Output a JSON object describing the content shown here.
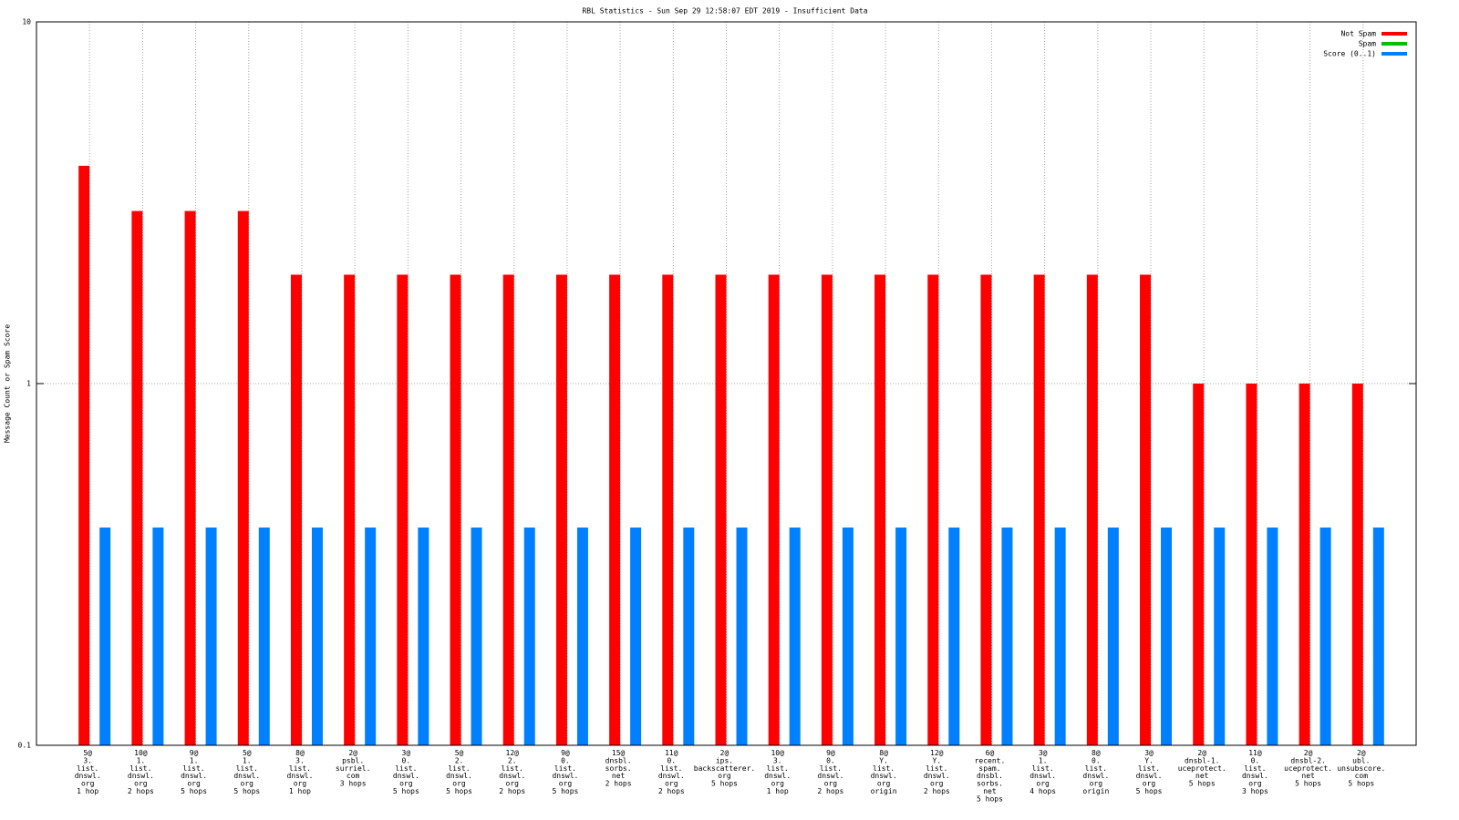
{
  "chart_data": {
    "type": "bar",
    "title": "RBL Statistics - Sun Sep 29 12:58:07 EDT 2019 - Insufficient Data",
    "y_label": "Message Count or Spam Score",
    "log_y": true,
    "grid": true,
    "legend": "top-right",
    "ylim": [
      0.1,
      10
    ],
    "yticks": [
      0.1,
      1,
      10
    ],
    "categories": [
      [
        "5@",
        "3.",
        "list.",
        "dnswl.",
        "org",
        "1 hop"
      ],
      [
        "10@",
        "1.",
        "list.",
        "dnswl.",
        "org",
        "2 hops"
      ],
      [
        "9@",
        "1.",
        "list.",
        "dnswl.",
        "org",
        "5 hops"
      ],
      [
        "5@",
        "1.",
        "list.",
        "dnswl.",
        "org",
        "5 hops"
      ],
      [
        "8@",
        "3.",
        "list.",
        "dnswl.",
        "org",
        "1 hop"
      ],
      [
        "2@",
        "psbl.",
        "surriel.",
        "com",
        "3 hops"
      ],
      [
        "3@",
        "0.",
        "list.",
        "dnswl.",
        "org",
        "5 hops"
      ],
      [
        "5@",
        "2.",
        "list.",
        "dnswl.",
        "org",
        "5 hops"
      ],
      [
        "12@",
        "2.",
        "list.",
        "dnswl.",
        "org",
        "2 hops"
      ],
      [
        "9@",
        "0.",
        "list.",
        "dnswl.",
        "org",
        "5 hops"
      ],
      [
        "15@",
        "dnsbl.",
        "sorbs.",
        "net",
        "2 hops"
      ],
      [
        "11@",
        "0.",
        "list.",
        "dnswl.",
        "org",
        "2 hops"
      ],
      [
        "2@",
        "ips.",
        "backscatterer.",
        "org",
        "5 hops"
      ],
      [
        "10@",
        "3.",
        "list.",
        "dnswl.",
        "org",
        "1 hop"
      ],
      [
        "9@",
        "0.",
        "list.",
        "dnswl.",
        "org",
        "2 hops"
      ],
      [
        "8@",
        "Y.",
        "list.",
        "dnswl.",
        "org",
        "origin"
      ],
      [
        "12@",
        "Y.",
        "list.",
        "dnswl.",
        "org",
        "2 hops"
      ],
      [
        "6@",
        "recent.",
        "spam.",
        "dnsbl.",
        "sorbs.",
        "net",
        "5 hops"
      ],
      [
        "3@",
        "1.",
        "list.",
        "dnswl.",
        "org",
        "4 hops"
      ],
      [
        "8@",
        "0.",
        "list.",
        "dnswl.",
        "org",
        "origin"
      ],
      [
        "3@",
        "Y.",
        "list.",
        "dnswl.",
        "org",
        "5 hops"
      ],
      [
        "2@",
        "dnsbl-1.",
        "uceprotect.",
        "net",
        "5 hops"
      ],
      [
        "11@",
        "0.",
        "list.",
        "dnswl.",
        "org",
        "3 hops"
      ],
      [
        "2@",
        "dnsbl-2.",
        "uceprotect.",
        "net",
        "5 hops"
      ],
      [
        "2@",
        "ubl.",
        "unsubscore.",
        "com",
        "5 hops"
      ]
    ],
    "series": [
      {
        "name": "Not Spam",
        "color": "#ff0000",
        "values": [
          4,
          3,
          3,
          3,
          2,
          2,
          2,
          2,
          2,
          2,
          2,
          2,
          2,
          2,
          2,
          2,
          2,
          2,
          2,
          2,
          2,
          1,
          1,
          1,
          1
        ]
      },
      {
        "name": "Spam",
        "color": "#00c000",
        "values": [
          0,
          0,
          0,
          0,
          0,
          0,
          0,
          0,
          0,
          0,
          0,
          0,
          0,
          0,
          0,
          0,
          0,
          0,
          0,
          0,
          0,
          0,
          0,
          0,
          0
        ]
      },
      {
        "name": "Score (0..1)",
        "color": "#0080ff",
        "values": [
          0.4,
          0.4,
          0.4,
          0.4,
          0.4,
          0.4,
          0.4,
          0.4,
          0.4,
          0.4,
          0.4,
          0.4,
          0.4,
          0.4,
          0.4,
          0.4,
          0.4,
          0.4,
          0.4,
          0.4,
          0.4,
          0.4,
          0.4,
          0.4,
          0.4
        ]
      }
    ]
  }
}
